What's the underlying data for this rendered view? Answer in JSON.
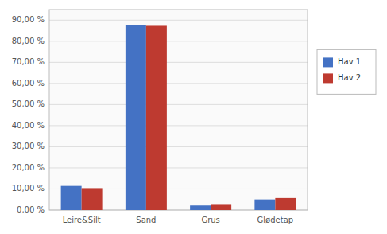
{
  "chart_data": {
    "type": "bar",
    "categories": [
      "Leire&Silt",
      "Sand",
      "Grus",
      "Glødetap"
    ],
    "series": [
      {
        "name": "Hav 1",
        "color": "#4472C4",
        "values": [
          0.1144,
          0.8762,
          0.0217,
          0.0504
        ]
      },
      {
        "name": "Hav 2",
        "color": "#BE3A30",
        "values": [
          0.104,
          0.873,
          0.0285,
          0.057
        ]
      }
    ],
    "ylim": [
      0,
      0.9501
    ],
    "yticks": [
      {
        "value": 0.0,
        "label": "0,00 %"
      },
      {
        "value": 0.1,
        "label": "10,00 %"
      },
      {
        "value": 0.2,
        "label": "20,00 %"
      },
      {
        "value": 0.3,
        "label": "30,00 %"
      },
      {
        "value": 0.4,
        "label": "40,00 %"
      },
      {
        "value": 0.5,
        "label": "50,00 %"
      },
      {
        "value": 0.6,
        "label": "60,00 %"
      },
      {
        "value": 0.7,
        "label": "70,00 %"
      },
      {
        "value": 0.8,
        "label": "80,00 %"
      },
      {
        "value": 0.9,
        "label": "90,00 %"
      }
    ],
    "grid": true,
    "legend": "right"
  }
}
